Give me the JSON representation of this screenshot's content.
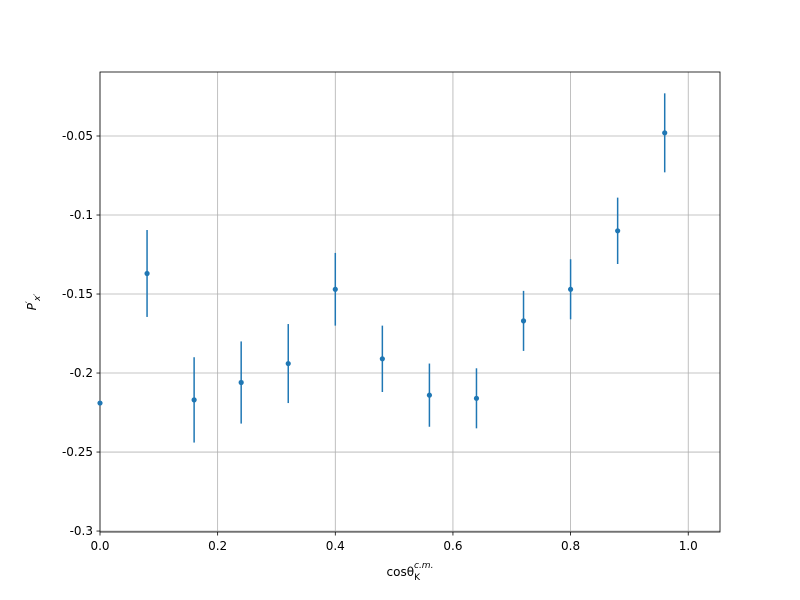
{
  "chart_data": {
    "type": "errorbar",
    "x_label": {
      "base": "cosθ",
      "sub": "K",
      "sup": "c.m."
    },
    "y_label": {
      "base": "P",
      "sup": "′",
      "sub": "x′"
    },
    "x": [
      0,
      0.08,
      0.16,
      0.24,
      0.32,
      0.4,
      0.48,
      0.56,
      0.64,
      0.72,
      0.8,
      0.88,
      0.96
    ],
    "values": [
      -0.219,
      -0.137,
      -0.217,
      -0.206,
      -0.194,
      -0.147,
      -0.191,
      -0.214,
      -0.216,
      -0.167,
      -0.147,
      -0.11,
      -0.048
    ],
    "errors": [
      0,
      0.0275,
      0.027,
      0.026,
      0.025,
      0.023,
      0.021,
      0.02,
      0.019,
      0.019,
      0.019,
      0.021,
      0.025
    ],
    "color": "#1f77b4",
    "xlim": [
      0,
      1.054
    ],
    "ylim": [
      -0.3006,
      -0.0095
    ],
    "xticks": [
      {
        "value": 0,
        "label": "0.0"
      },
      0.2,
      0.4,
      0.6,
      0.8,
      {
        "value": 1,
        "label": "1.0"
      }
    ],
    "yticks": [
      -0.3,
      -0.25,
      -0.2,
      -0.15,
      -0.1,
      -0.05
    ],
    "grid": true
  }
}
